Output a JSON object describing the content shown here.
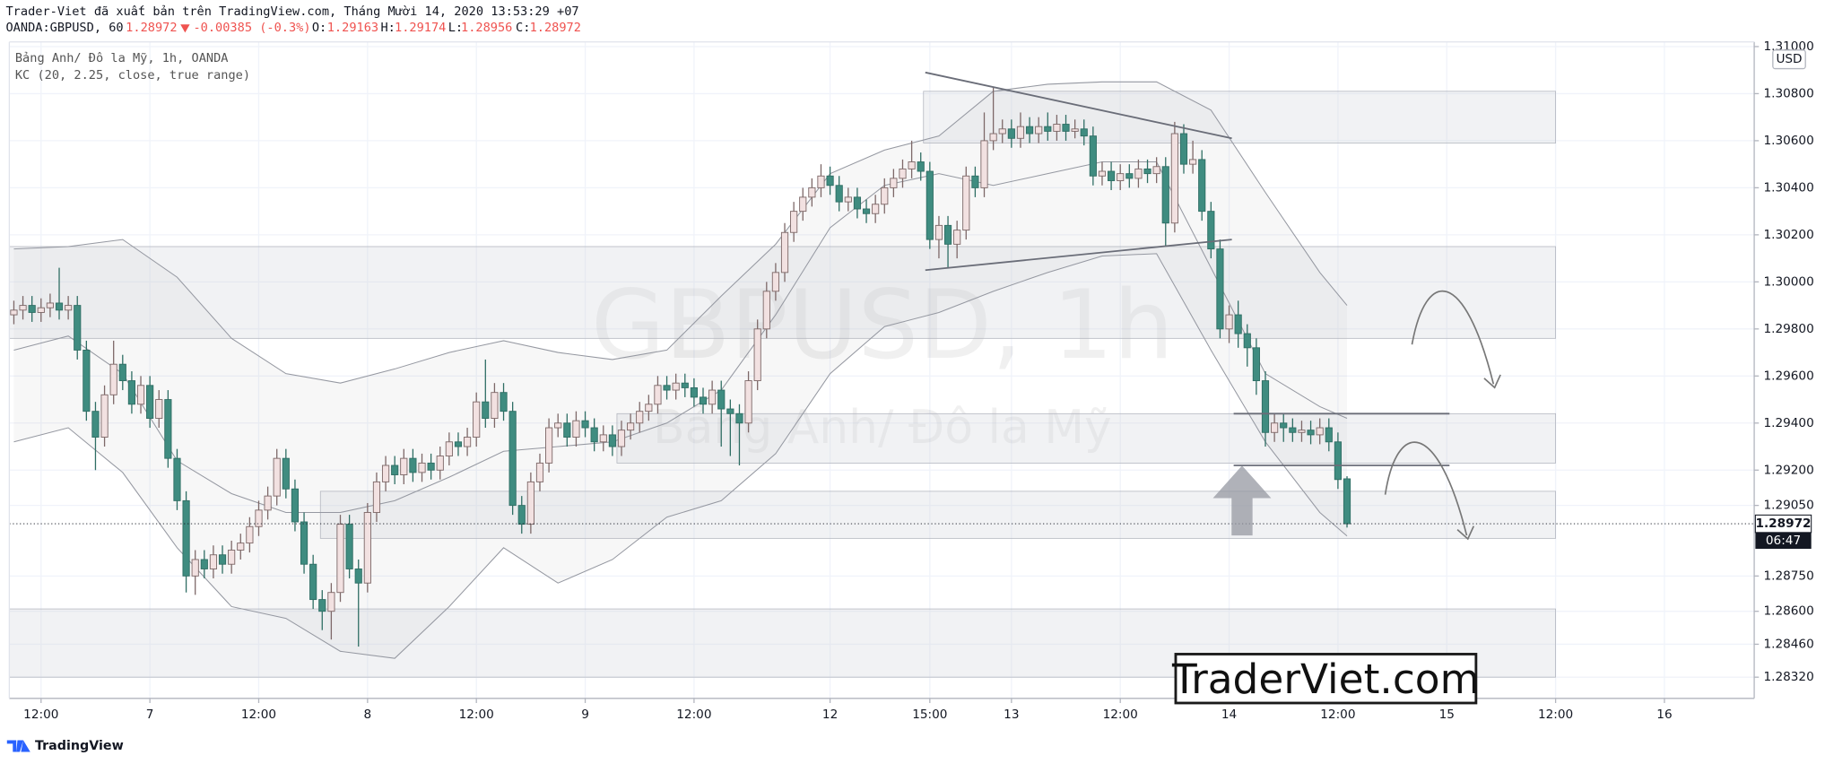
{
  "header": {
    "published": "Trader-Viet đã xuất bản trên TradingView.com, Tháng Mười 14, 2020 13:53:29 +07",
    "symbol": "OANDA:GBPUSD, 60",
    "change": "-0.00385 (-0.3%)",
    "open_label": "O:",
    "high_label": "H:",
    "low_label": "L:",
    "close_label": "C:"
  },
  "chart_data": {
    "type": "candlestick",
    "title": "Bảng Anh/ Đô la Mỹ, 1h, OANDA",
    "watermark": "GBPUSD, 1h",
    "watermark_subtitle": "Bảng Anh/ Đô la Mỹ",
    "currency": "USD",
    "countdown": "06:47",
    "up_color": "#f2e1e1",
    "down_color": "#3f8c80",
    "grid": true,
    "xlim": [
      -0.5,
      191.9
    ],
    "ylim": [
      1.2823,
      1.3101
    ],
    "xticks": [
      {
        "value": 3,
        "label": "12:00"
      },
      {
        "value": 15,
        "label": "7"
      },
      {
        "value": 27,
        "label": "12:00"
      },
      {
        "value": 39,
        "label": "8"
      },
      {
        "value": 51,
        "label": "12:00"
      },
      {
        "value": 63,
        "label": "9"
      },
      {
        "value": 75,
        "label": "12:00"
      },
      {
        "value": 90,
        "label": "12"
      },
      {
        "value": 101,
        "label": "15:00"
      },
      {
        "value": 110,
        "label": "13"
      },
      {
        "value": 122,
        "label": "12:00"
      },
      {
        "value": 134,
        "label": "14"
      },
      {
        "value": 146,
        "label": "12:00"
      },
      {
        "value": 158,
        "label": "15"
      },
      {
        "value": 170,
        "label": "12:00"
      },
      {
        "value": 182,
        "label": "16"
      }
    ],
    "yticks": [
      {
        "value": 1.31,
        "label": "1.31000"
      },
      {
        "value": 1.308,
        "label": "1.30800"
      },
      {
        "value": 1.306,
        "label": "1.30600"
      },
      {
        "value": 1.304,
        "label": "1.30400"
      },
      {
        "value": 1.302,
        "label": "1.30200"
      },
      {
        "value": 1.3,
        "label": "1.30000"
      },
      {
        "value": 1.298,
        "label": "1.29800"
      },
      {
        "value": 1.296,
        "label": "1.29600"
      },
      {
        "value": 1.294,
        "label": "1.29400"
      },
      {
        "value": 1.292,
        "label": "1.29200"
      },
      {
        "value": 1.2905,
        "label": "1.29050"
      },
      {
        "value": 1.2875,
        "label": "1.28750"
      },
      {
        "value": 1.286,
        "label": "1.28600"
      },
      {
        "value": 1.2846,
        "label": "1.28460"
      },
      {
        "value": 1.2832,
        "label": "1.28320"
      }
    ],
    "open": [
      1.2986,
      1.2988,
      1.299,
      1.2987,
      1.2989,
      1.2991,
      1.2988,
      1.299,
      1.2971,
      1.2945,
      1.2934,
      1.2952,
      1.2965,
      1.2958,
      1.2948,
      1.2956,
      1.2942,
      1.295,
      1.2925,
      1.2907,
      1.2875,
      1.2882,
      1.2878,
      1.2884,
      1.288,
      1.2886,
      1.2889,
      1.2896,
      1.2903,
      1.2909,
      1.2925,
      1.2912,
      1.2898,
      1.288,
      1.2865,
      1.286,
      1.2868,
      1.2897,
      1.2878,
      1.2872,
      1.2902,
      1.2915,
      1.2922,
      1.2918,
      1.2925,
      1.2919,
      1.2923,
      1.292,
      1.2926,
      1.2932,
      1.293,
      1.2934,
      1.2949,
      1.2942,
      1.2953,
      1.2945,
      1.2905,
      1.2897,
      1.2915,
      1.2923,
      1.2938,
      1.294,
      1.2934,
      1.2941,
      1.2938,
      1.2932,
      1.2935,
      1.293,
      1.2937,
      1.294,
      1.2945,
      1.2948,
      1.2956,
      1.2954,
      1.2957,
      1.2955,
      1.2951,
      1.2948,
      1.2954,
      1.2946,
      1.2944,
      1.294,
      1.2958,
      1.298,
      1.2996,
      1.3004,
      1.3021,
      1.303,
      1.3036,
      1.304,
      1.3045,
      1.3041,
      1.3034,
      1.3036,
      1.3031,
      1.3029,
      1.3033,
      1.304,
      1.3044,
      1.3048,
      1.3051,
      1.3047,
      1.3018,
      1.3024,
      1.3016,
      1.3022,
      1.3045,
      1.304,
      1.306,
      1.3063,
      1.3065,
      1.3061,
      1.3066,
      1.3063,
      1.3066,
      1.3064,
      1.3067,
      1.3064,
      1.3065,
      1.3062,
      1.3045,
      1.3047,
      1.3043,
      1.3046,
      1.3044,
      1.3048,
      1.3046,
      1.3049,
      1.3025,
      1.3063,
      1.305,
      1.3052,
      1.303,
      1.3014,
      1.298,
      1.2986,
      1.2978,
      1.2972,
      1.2958,
      1.2936,
      1.294,
      1.2938,
      1.2936,
      1.2937,
      1.2935,
      1.2938,
      1.2932,
      1.29163
    ],
    "high": [
      1.2992,
      1.2994,
      1.2994,
      1.2993,
      1.2995,
      1.3006,
      1.2994,
      1.2994,
      1.2975,
      1.2949,
      1.2956,
      1.2975,
      1.2969,
      1.2962,
      1.296,
      1.296,
      1.2954,
      1.2954,
      1.2929,
      1.2911,
      1.2886,
      1.2886,
      1.2888,
      1.2888,
      1.289,
      1.2893,
      1.29,
      1.2907,
      1.2913,
      1.2929,
      1.2929,
      1.2916,
      1.2902,
      1.2884,
      1.2869,
      1.2872,
      1.2901,
      1.2901,
      1.2882,
      1.2906,
      1.2919,
      1.2926,
      1.2926,
      1.2929,
      1.2929,
      1.2927,
      1.2927,
      1.293,
      1.2936,
      1.2936,
      1.2938,
      1.2953,
      1.2967,
      1.2957,
      1.2957,
      1.2949,
      1.2909,
      1.2919,
      1.2927,
      1.2942,
      1.2944,
      1.2944,
      1.2945,
      1.2945,
      1.2942,
      1.2939,
      1.2939,
      1.2941,
      1.2944,
      1.2949,
      1.2952,
      1.296,
      1.296,
      1.2961,
      1.2961,
      1.2959,
      1.2955,
      1.2958,
      1.2958,
      1.295,
      1.2948,
      1.2962,
      1.2984,
      1.3,
      1.3008,
      1.3025,
      1.3034,
      1.304,
      1.3044,
      1.305,
      1.3049,
      1.3045,
      1.304,
      1.304,
      1.3035,
      1.3037,
      1.3044,
      1.3048,
      1.3052,
      1.306,
      1.3055,
      1.3051,
      1.3028,
      1.3028,
      1.3026,
      1.3049,
      1.3049,
      1.3072,
      1.3083,
      1.3069,
      1.3069,
      1.3072,
      1.307,
      1.307,
      1.3072,
      1.3071,
      1.3071,
      1.3069,
      1.3069,
      1.3066,
      1.3051,
      1.3051,
      1.305,
      1.305,
      1.3052,
      1.3052,
      1.3053,
      1.3053,
      1.3068,
      1.3067,
      1.306,
      1.3056,
      1.3034,
      1.3018,
      1.299,
      1.2992,
      1.2982,
      1.2976,
      1.2962,
      1.2944,
      1.2944,
      1.2942,
      1.2941,
      1.2941,
      1.2942,
      1.2942,
      1.2936,
      1.29174
    ],
    "low": [
      1.2982,
      1.2984,
      1.2983,
      1.2983,
      1.2985,
      1.2984,
      1.2984,
      1.2967,
      1.2941,
      1.292,
      1.293,
      1.2948,
      1.2954,
      1.2944,
      1.2944,
      1.2938,
      1.2938,
      1.2921,
      1.2903,
      1.2868,
      1.2867,
      1.2874,
      1.2874,
      1.2876,
      1.2876,
      1.2882,
      1.2885,
      1.2892,
      1.2899,
      1.2905,
      1.2908,
      1.2894,
      1.2876,
      1.2861,
      1.2852,
      1.2848,
      1.2864,
      1.2874,
      1.2845,
      1.2868,
      1.2898,
      1.2911,
      1.2914,
      1.2914,
      1.2915,
      1.2915,
      1.2916,
      1.2916,
      1.2922,
      1.2926,
      1.2926,
      1.293,
      1.2938,
      1.2938,
      1.2941,
      1.2901,
      1.2893,
      1.2893,
      1.2911,
      1.2919,
      1.2934,
      1.293,
      1.293,
      1.2934,
      1.2928,
      1.2928,
      1.2926,
      1.2926,
      1.2933,
      1.2936,
      1.2941,
      1.2944,
      1.295,
      1.295,
      1.2951,
      1.2947,
      1.2944,
      1.2944,
      1.293,
      1.2926,
      1.2922,
      1.2936,
      1.2954,
      1.2976,
      1.2992,
      1.3,
      1.3017,
      1.3026,
      1.3032,
      1.3036,
      1.3037,
      1.303,
      1.303,
      1.3027,
      1.3025,
      1.3025,
      1.3029,
      1.3036,
      1.304,
      1.3044,
      1.3043,
      1.3014,
      1.301,
      1.3006,
      1.301,
      1.3018,
      1.3036,
      1.3036,
      1.3056,
      1.3059,
      1.3057,
      1.3057,
      1.3059,
      1.3059,
      1.306,
      1.306,
      1.306,
      1.3061,
      1.3058,
      1.3041,
      1.3041,
      1.3039,
      1.3039,
      1.304,
      1.304,
      1.3042,
      1.3042,
      1.3015,
      1.3021,
      1.3046,
      1.3046,
      1.3026,
      1.301,
      1.2976,
      1.2974,
      1.2972,
      1.2964,
      1.2952,
      1.293,
      1.2932,
      1.2932,
      1.2932,
      1.2932,
      1.2931,
      1.2931,
      1.2928,
      1.2912,
      1.28956
    ],
    "close": [
      1.2988,
      1.299,
      1.2987,
      1.2989,
      1.2991,
      1.2988,
      1.299,
      1.2971,
      1.2945,
      1.2934,
      1.2952,
      1.2965,
      1.2958,
      1.2948,
      1.2956,
      1.2942,
      1.295,
      1.2925,
      1.2907,
      1.2875,
      1.2882,
      1.2878,
      1.2884,
      1.288,
      1.2886,
      1.2889,
      1.2896,
      1.2903,
      1.2909,
      1.2925,
      1.2912,
      1.2898,
      1.288,
      1.2865,
      1.286,
      1.2868,
      1.2897,
      1.2878,
      1.2872,
      1.2902,
      1.2915,
      1.2922,
      1.2918,
      1.2925,
      1.2919,
      1.2923,
      1.292,
      1.2926,
      1.2932,
      1.293,
      1.2934,
      1.2949,
      1.2942,
      1.2953,
      1.2945,
      1.2905,
      1.2897,
      1.2915,
      1.2923,
      1.2938,
      1.294,
      1.2934,
      1.2941,
      1.2938,
      1.2932,
      1.2935,
      1.293,
      1.2937,
      1.294,
      1.2945,
      1.2948,
      1.2956,
      1.2954,
      1.2957,
      1.2955,
      1.2951,
      1.2948,
      1.2954,
      1.2946,
      1.2944,
      1.294,
      1.2958,
      1.298,
      1.2996,
      1.3004,
      1.3021,
      1.303,
      1.3036,
      1.304,
      1.3045,
      1.3041,
      1.3034,
      1.3036,
      1.3031,
      1.3029,
      1.3033,
      1.304,
      1.3044,
      1.3048,
      1.3051,
      1.3047,
      1.3018,
      1.3024,
      1.3016,
      1.3022,
      1.3045,
      1.304,
      1.306,
      1.3063,
      1.3065,
      1.3061,
      1.3066,
      1.3063,
      1.3066,
      1.3064,
      1.3067,
      1.3064,
      1.3065,
      1.3062,
      1.3045,
      1.3047,
      1.3043,
      1.3046,
      1.3044,
      1.3048,
      1.3046,
      1.3049,
      1.3025,
      1.3063,
      1.305,
      1.3052,
      1.303,
      1.3014,
      1.298,
      1.2986,
      1.2978,
      1.2972,
      1.2958,
      1.2936,
      1.294,
      1.2938,
      1.2936,
      1.2937,
      1.2935,
      1.2938,
      1.2932,
      1.2916,
      1.28972
    ],
    "indicator": {
      "name": "KC (20, 2.25, close, true range)",
      "color": "#9598a1",
      "x": [
        0,
        6,
        12,
        18,
        24,
        30,
        36,
        42,
        48,
        54,
        60,
        66,
        72,
        78,
        84,
        90,
        96,
        102,
        108,
        114,
        120,
        126,
        132,
        138,
        144,
        147
      ],
      "upper": [
        1.3014,
        1.3015,
        1.3018,
        1.3002,
        1.2976,
        1.2961,
        1.2957,
        1.2963,
        1.297,
        1.2975,
        1.297,
        1.2967,
        1.2971,
        1.2994,
        1.3016,
        1.3046,
        1.3056,
        1.3062,
        1.3081,
        1.3084,
        1.3085,
        1.3085,
        1.3073,
        1.3038,
        1.3004,
        1.299
      ],
      "basis": [
        1.2971,
        1.2977,
        1.2961,
        1.2924,
        1.291,
        1.2902,
        1.2902,
        1.2907,
        1.2917,
        1.2928,
        1.293,
        1.2932,
        1.294,
        1.2954,
        1.2986,
        1.3023,
        1.3041,
        1.3046,
        1.3041,
        1.3046,
        1.3051,
        1.3051,
        1.3006,
        1.2961,
        1.2947,
        1.2942
      ],
      "lower": [
        1.2932,
        1.2938,
        1.2919,
        1.2887,
        1.2862,
        1.2857,
        1.2843,
        1.284,
        1.2862,
        1.2887,
        1.2872,
        1.2882,
        1.29,
        1.2907,
        1.2927,
        1.2961,
        1.2981,
        1.2987,
        1.2996,
        1.3004,
        1.3011,
        1.3012,
        1.2971,
        1.2932,
        1.2902,
        1.2892
      ]
    },
    "zones": [
      {
        "x": [
          -0.5,
          170
        ],
        "y": [
          1.2976,
          1.3015
        ]
      },
      {
        "x": [
          100.3,
          170
        ],
        "y": [
          1.3059,
          1.3081
        ]
      },
      {
        "x": [
          66.5,
          170
        ],
        "y": [
          1.2923,
          1.2944
        ]
      },
      {
        "x": [
          33.8,
          170
        ],
        "y": [
          1.2891,
          1.2911
        ]
      },
      {
        "x": [
          -0.5,
          170
        ],
        "y": [
          1.2832,
          1.2861
        ]
      }
    ],
    "trendlines": [
      {
        "x": [
          100.5,
          134.3
        ],
        "y": [
          1.3089,
          1.3061
        ]
      },
      {
        "x": [
          100.5,
          134.3
        ],
        "y": [
          1.3005,
          1.3018
        ]
      },
      {
        "x": [
          134.5,
          158.3
        ],
        "y": [
          1.2944,
          1.2944
        ]
      },
      {
        "x": [
          134.5,
          158.3
        ],
        "y": [
          1.2922,
          1.2922
        ]
      }
    ]
  },
  "branding": {
    "logo": "TradingView",
    "stamp": "TraderViet.com"
  }
}
